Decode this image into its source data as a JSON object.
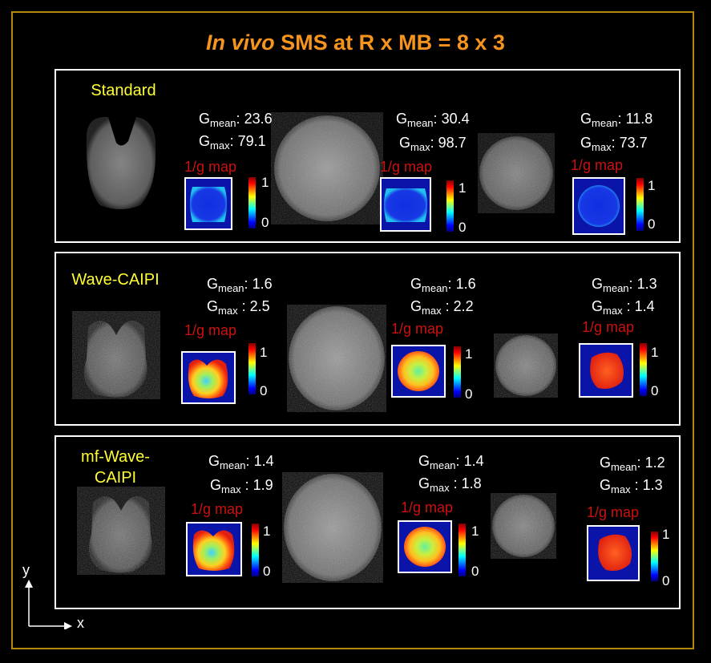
{
  "title": {
    "italic": "In vivo",
    "rest": " SMS at R x MB = 8 x 3"
  },
  "colors": {
    "frame": "#b8860b",
    "title": "#f7941d",
    "label": "#ffff33",
    "map_label": "#cc1111"
  },
  "map_label": "1/g  map",
  "axes": {
    "y": "y",
    "x": "x"
  },
  "panels": [
    {
      "name": "Standard",
      "slices": [
        {
          "gmean": "23.6",
          "gmax": "79.1",
          "cmax": "1",
          "cmin": "0"
        },
        {
          "gmean": "30.4",
          "gmax": "98.7",
          "cmax": "1",
          "cmin": "0"
        },
        {
          "gmean": "11.8",
          "gmax": "73.7",
          "cmax": "1",
          "cmin": "0"
        }
      ]
    },
    {
      "name": "Wave-CAIPI",
      "slices": [
        {
          "gmean": "1.6",
          "gmax": "2.5",
          "cmax": "1",
          "cmin": "0"
        },
        {
          "gmean": "1.6",
          "gmax": "2.2",
          "cmax": "1",
          "cmin": "0"
        },
        {
          "gmean": "1.3",
          "gmax": "1.4",
          "cmax": "1",
          "cmin": "0"
        }
      ]
    },
    {
      "name_line1": "mf-Wave-",
      "name_line2": "CAIPI",
      "slices": [
        {
          "gmean": "1.4",
          "gmax": "1.9",
          "cmax": "1",
          "cmin": "0"
        },
        {
          "gmean": "1.4",
          "gmax": "1.8",
          "cmax": "1",
          "cmin": "0"
        },
        {
          "gmean": "1.2",
          "gmax": "1.3",
          "cmax": "1",
          "cmin": "0"
        }
      ]
    }
  ],
  "gmean_sub": "mean",
  "gmax_sub": "max",
  "g_letter": "G"
}
